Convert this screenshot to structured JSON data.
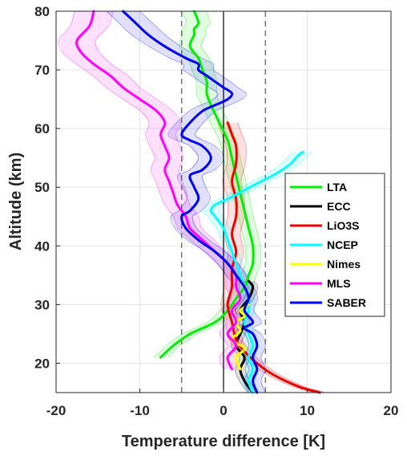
{
  "chart_data": {
    "type": "line",
    "title": "",
    "xlabel": "Temperature difference [K]",
    "ylabel": "Altitude (km)",
    "xlim": [
      -20,
      20
    ],
    "ylim": [
      15,
      80
    ],
    "xticks": [
      -20,
      -10,
      0,
      10,
      20
    ],
    "yticks": [
      20,
      30,
      40,
      50,
      60,
      70,
      80
    ],
    "grid": true,
    "legend_position": "center-right",
    "reference_lines": [
      {
        "x": 0,
        "style": "solid",
        "color": "#000000"
      },
      {
        "x": -5,
        "style": "dashed",
        "color": "#555555"
      },
      {
        "x": 5,
        "style": "dashed",
        "color": "#555555"
      }
    ],
    "series": [
      {
        "name": "LTA",
        "color": "#00ee00",
        "x": [
          -7.5,
          -6.0,
          -4.0,
          -1.0,
          0.5,
          1.5,
          2.5,
          3.0,
          3.5,
          3.5,
          3.0,
          2.5,
          2.0,
          1.5,
          1.0,
          0.5,
          -0.5,
          -1.5,
          -2.0,
          -2.0,
          -2.5,
          -3.0,
          -4.0,
          -3.5,
          -3.5,
          -3.0,
          -3.5
        ],
        "y": [
          21,
          23,
          25,
          27,
          29,
          31,
          33,
          35,
          37,
          40,
          43,
          46,
          49,
          52,
          55,
          58,
          61,
          64,
          66,
          68,
          70,
          72,
          74,
          76,
          77,
          78,
          80
        ],
        "band": [
          0.8,
          0.8,
          0.9,
          0.9,
          0.9,
          0.9,
          0.9,
          0.9,
          0.9,
          0.9,
          0.9,
          0.9,
          1.0,
          1.0,
          1.0,
          1.0,
          1.1,
          1.1,
          1.2,
          1.2,
          1.3,
          1.3,
          1.3,
          1.4,
          1.4,
          1.4,
          1.5
        ]
      },
      {
        "name": "ECC",
        "color": "#000000",
        "x": [
          3.5,
          2.5,
          2.0,
          2.5,
          1.5,
          2.0,
          2.5,
          2.0,
          3.0,
          3.5,
          3.0
        ],
        "y": [
          15,
          17,
          19,
          21,
          23,
          25,
          27,
          29,
          31,
          33,
          34
        ],
        "band": [
          0.6,
          0.6,
          0.6,
          0.6,
          0.6,
          0.6,
          0.6,
          0.6,
          0.6,
          0.6,
          0.6
        ]
      },
      {
        "name": "LiO3S",
        "color": "#ee0000",
        "x": [
          11.5,
          9.0,
          6.0,
          4.0,
          2.5,
          1.5,
          1.0,
          0.5,
          1.0,
          1.0,
          1.5,
          1.0,
          1.5,
          1.5,
          1.0,
          1.5,
          1.5,
          1.0,
          0.5
        ],
        "y": [
          15,
          16,
          18,
          20,
          22,
          24,
          27,
          30,
          33,
          36,
          39,
          42,
          45,
          48,
          51,
          54,
          57,
          59,
          61
        ],
        "band": [
          0.7,
          0.7,
          0.7,
          0.7,
          0.7,
          0.8,
          0.8,
          0.8,
          0.9,
          0.9,
          0.9,
          1.0,
          1.0,
          1.0,
          1.1,
          1.1,
          1.2,
          1.2,
          1.2
        ]
      },
      {
        "name": "NCEP",
        "color": "#00ffff",
        "x": [
          3.5,
          3.0,
          3.5,
          3.0,
          3.5,
          3.0,
          2.5,
          3.0,
          3.0,
          2.5,
          2.0,
          1.5,
          1.0,
          0.5,
          0.0,
          -1.0,
          -1.5,
          -1.0,
          0.5,
          2.5,
          4.5,
          6.5,
          8.0,
          9.0,
          9.5
        ],
        "y": [
          15,
          17,
          19,
          21,
          23,
          25,
          27,
          29,
          31,
          33,
          35,
          37,
          39,
          41,
          43,
          45,
          46,
          47,
          48,
          49.5,
          51,
          52.5,
          54,
          55.5,
          56
        ],
        "band": [
          0.7,
          0.7,
          0.7,
          0.7,
          0.7,
          0.7,
          0.7,
          0.7,
          0.7,
          0.8,
          0.8,
          0.8,
          0.8,
          0.8,
          0.8,
          0.9,
          0.9,
          0.9,
          1.0,
          1.0,
          1.0,
          1.1,
          1.1,
          1.1,
          1.2
        ]
      },
      {
        "name": "Nimes",
        "color": "#ffff00",
        "x": [
          2.0,
          1.5,
          2.5,
          1.0,
          2.0,
          1.5,
          2.5,
          2.0,
          3.0
        ],
        "y": [
          19,
          21,
          22.5,
          24,
          25.5,
          27,
          28,
          29,
          30
        ],
        "band": [
          0.5,
          0.5,
          0.5,
          0.5,
          0.5,
          0.5,
          0.5,
          0.5,
          0.5
        ]
      },
      {
        "name": "MLS",
        "color": "#ff00ff",
        "x": [
          1.0,
          0.5,
          1.5,
          0.5,
          1.5,
          1.0,
          2.0,
          1.5,
          1.5,
          0.5,
          -1.0,
          -2.5,
          -4.0,
          -4.5,
          -5.5,
          -6.0,
          -6.5,
          -7.0,
          -6.5,
          -7.0,
          -7.5,
          -7.0,
          -8.0,
          -10.0,
          -12.0,
          -13.5,
          -15.5,
          -17.0,
          -17.5,
          -16.0,
          -15.5
        ],
        "y": [
          19,
          21,
          23,
          25,
          27,
          29,
          31,
          33,
          35,
          37,
          39,
          41,
          43,
          45,
          47,
          49,
          51,
          53,
          55,
          57,
          59,
          61,
          63,
          65,
          67,
          69,
          71,
          73,
          75,
          77.5,
          80
        ],
        "band": [
          1.0,
          1.0,
          1.0,
          1.0,
          1.1,
          1.1,
          1.1,
          1.2,
          1.2,
          1.3,
          1.3,
          1.4,
          1.4,
          1.5,
          1.5,
          1.6,
          1.6,
          1.7,
          1.7,
          1.8,
          1.8,
          1.9,
          1.9,
          2.0,
          2.0,
          2.1,
          2.1,
          2.2,
          2.2,
          2.3,
          2.3
        ]
      },
      {
        "name": "SABER",
        "color": "#0000ee",
        "x": [
          4.0,
          3.5,
          4.0,
          3.5,
          4.0,
          3.5,
          2.5,
          3.5,
          2.5,
          3.0,
          2.5,
          1.5,
          0.5,
          -1.0,
          -3.0,
          -4.5,
          -5.0,
          -4.0,
          -3.0,
          -3.5,
          -4.0,
          -2.5,
          -1.5,
          -2.5,
          -4.0,
          -5.0,
          -4.0,
          -2.5,
          -1.0,
          0.5,
          1.0,
          0.0,
          -1.0,
          -2.0,
          -3.0,
          -3.0,
          -4.5,
          -7.0,
          -9.0,
          -10.5,
          -12.0
        ],
        "y": [
          15,
          17,
          19,
          21,
          23,
          25,
          26,
          27,
          29,
          31,
          33,
          35,
          37,
          39,
          41,
          43,
          45,
          46,
          48,
          50,
          52,
          53,
          55,
          57,
          58,
          59,
          61,
          63,
          64,
          65,
          66,
          67,
          68,
          69,
          70,
          71,
          72,
          74,
          76,
          78,
          80
        ],
        "band": [
          1.0,
          1.0,
          1.0,
          1.0,
          1.0,
          1.0,
          1.0,
          1.1,
          1.1,
          1.1,
          1.1,
          1.2,
          1.2,
          1.2,
          1.3,
          1.3,
          1.3,
          1.4,
          1.4,
          1.4,
          1.5,
          1.5,
          1.5,
          1.5,
          1.6,
          1.6,
          1.6,
          1.6,
          1.7,
          1.7,
          1.7,
          1.7,
          1.8,
          1.8,
          1.8,
          1.8,
          1.9,
          1.9,
          2.0,
          2.0,
          2.0
        ]
      }
    ]
  }
}
